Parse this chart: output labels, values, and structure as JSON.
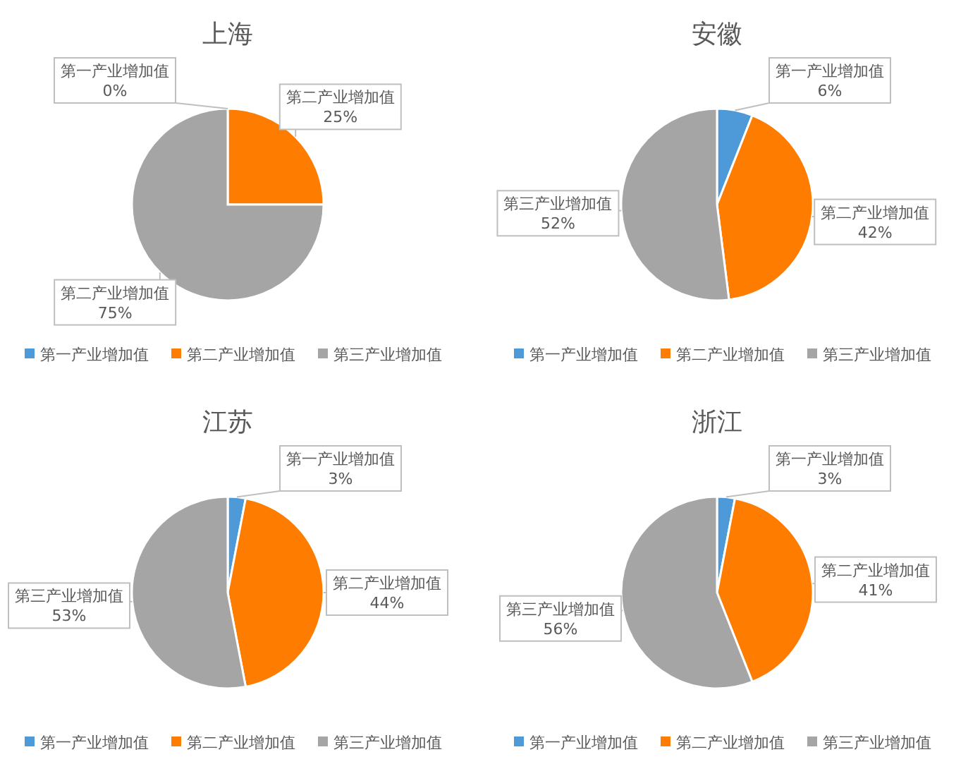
{
  "chart_data": [
    {
      "type": "pie",
      "title": "上海",
      "categories": [
        "第一产业增加值",
        "第二产业增加值",
        "第三产业增加值"
      ],
      "values": [
        0,
        25,
        75
      ],
      "colors": [
        "#4e9ad8",
        "#fe7c00",
        "#a5a5a5"
      ],
      "value_labels": [
        "第一产业增加值 0%",
        "第二产业增加值 25%",
        "第二产业增加值 75%"
      ],
      "legend": "bottom"
    },
    {
      "type": "pie",
      "title": "安徽",
      "categories": [
        "第一产业增加值",
        "第二产业增加值",
        "第三产业增加值"
      ],
      "values": [
        6,
        42,
        52
      ],
      "colors": [
        "#4e9ad8",
        "#fe7c00",
        "#a5a5a5"
      ],
      "value_labels": [
        "第一产业增加值 6%",
        "第二产业增加值 42%",
        "第三产业增加值 52%"
      ],
      "legend": "bottom"
    },
    {
      "type": "pie",
      "title": "江苏",
      "categories": [
        "第一产业增加值",
        "第二产业增加值",
        "第三产业增加值"
      ],
      "values": [
        3,
        44,
        53
      ],
      "colors": [
        "#4e9ad8",
        "#fe7c00",
        "#a5a5a5"
      ],
      "value_labels": [
        "第一产业增加值 3%",
        "第二产业增加值 44%",
        "第三产业增加值 53%"
      ],
      "legend": "bottom"
    },
    {
      "type": "pie",
      "title": "浙江",
      "categories": [
        "第一产业增加值",
        "第二产业增加值",
        "第三产业增加值"
      ],
      "values": [
        3,
        41,
        56
      ],
      "colors": [
        "#4e9ad8",
        "#fe7c00",
        "#a5a5a5"
      ],
      "value_labels": [
        "第一产业增加值 3%",
        "第二产业增加值 41%",
        "第三产业增加值 56%"
      ],
      "legend": "bottom"
    }
  ]
}
